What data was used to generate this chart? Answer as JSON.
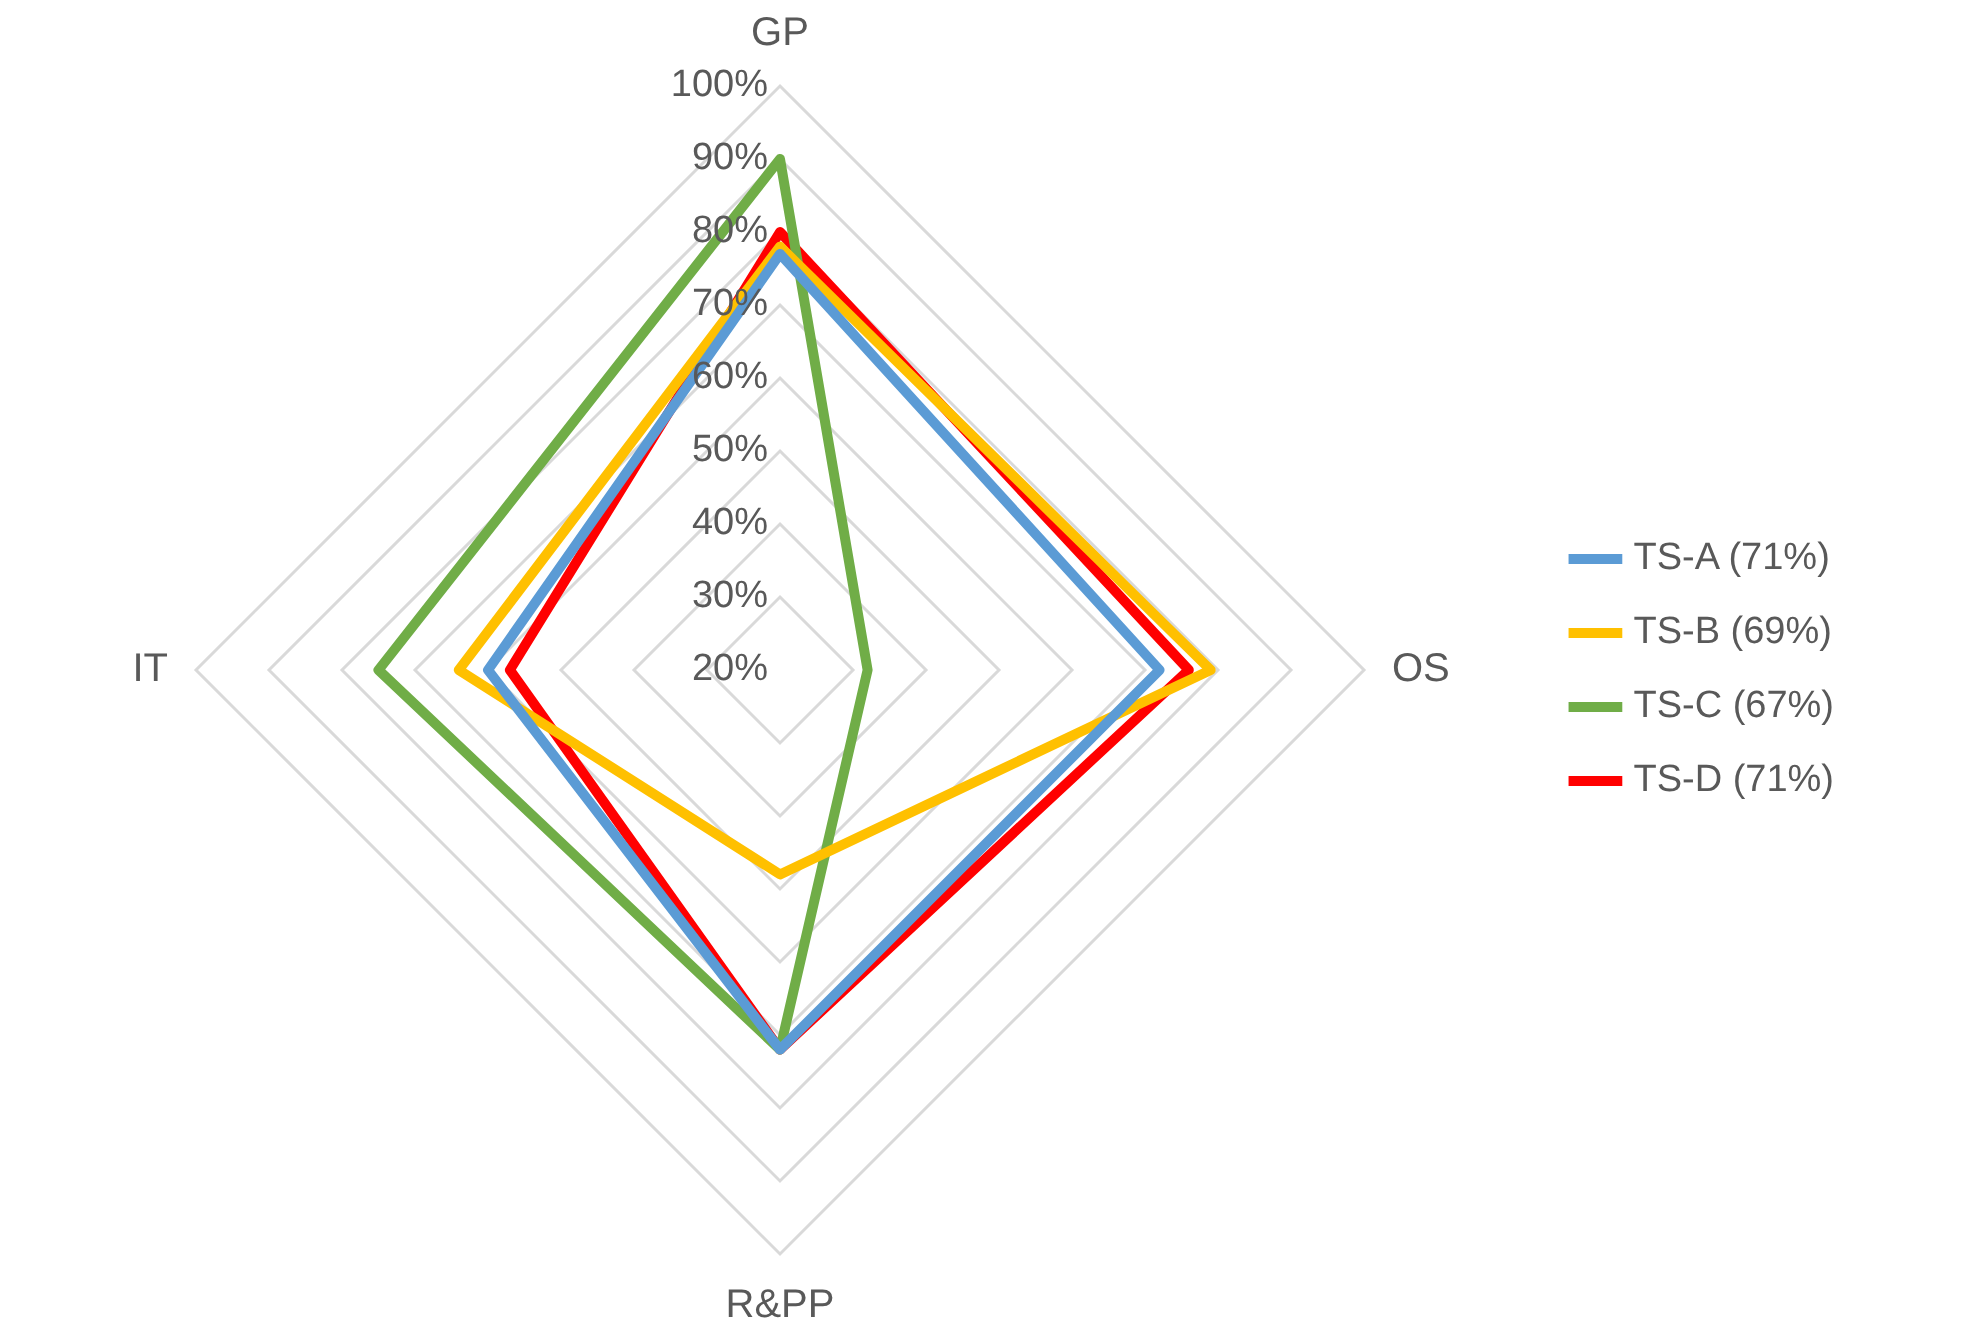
{
  "chart_data": {
    "type": "radar",
    "categories": [
      "GP",
      "OS",
      "R&PP",
      "IT"
    ],
    "series": [
      {
        "name": "TS-A (71%)",
        "color": "#5b9bd5",
        "values": [
          77,
          72,
          72,
          60
        ]
      },
      {
        "name": "TS-B (69%)",
        "color": "#ffc000",
        "values": [
          78,
          79,
          48,
          64
        ]
      },
      {
        "name": "TS-C (67%)",
        "color": "#70ad47",
        "values": [
          90,
          32,
          72,
          75
        ]
      },
      {
        "name": "TS-D (71%)",
        "color": "#ff0000",
        "values": [
          80,
          76,
          72,
          57
        ]
      }
    ],
    "ylim": [
      20,
      100
    ],
    "yticks": [
      {
        "value": 20,
        "label": "20%"
      },
      {
        "value": 30,
        "label": "30%"
      },
      {
        "value": 40,
        "label": "40%"
      },
      {
        "value": 50,
        "label": "50%"
      },
      {
        "value": 60,
        "label": "60%"
      },
      {
        "value": 70,
        "label": "70%"
      },
      {
        "value": 80,
        "label": "80%"
      },
      {
        "value": 90,
        "label": "90%"
      },
      {
        "value": 100,
        "label": "100%"
      }
    ],
    "grid": true,
    "legend": "right",
    "marker": "none",
    "line_style": "solid"
  }
}
